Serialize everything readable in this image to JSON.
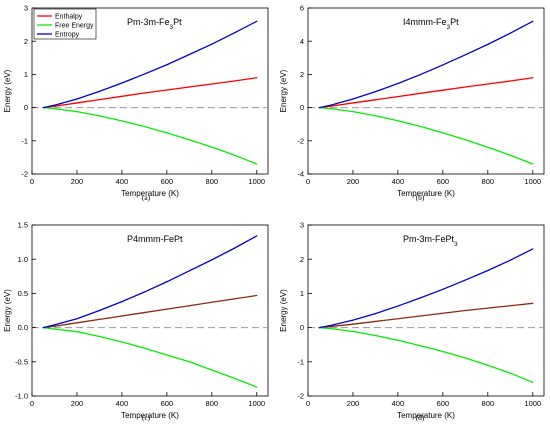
{
  "colors": {
    "enthalpy": "#ff0000",
    "free_energy": "#00ee00",
    "entropy": "#0000cc",
    "zero_line": "#999999"
  },
  "chart_data": [
    {
      "type": "line",
      "title": "Pm-3m-Fe3Pt",
      "title_base": "Pm-3m-Fe",
      "title_sub": "3",
      "title_tail": "Pt",
      "xlabel": "Temperature (K)",
      "ylabel": "Energy (eV)",
      "caption": "(a)",
      "xlim": [
        0,
        1050
      ],
      "ylim": [
        -2,
        3
      ],
      "xticks": [
        0,
        200,
        400,
        600,
        800,
        1000
      ],
      "xtick_labels": [
        "0",
        "200",
        "400",
        "600",
        "800",
        "1000"
      ],
      "yticks": [
        -2,
        -1,
        0,
        1,
        2,
        3
      ],
      "ytick_labels": [
        "-2",
        "-1",
        "0",
        "1",
        "2",
        "3"
      ],
      "legend": {
        "placement": "top-left",
        "entries": [
          "Enthalpy",
          "Free Energy",
          "Entropy"
        ]
      },
      "x": [
        50,
        100,
        200,
        300,
        400,
        500,
        600,
        700,
        800,
        900,
        1000
      ],
      "series": [
        {
          "name": "Enthalpy",
          "color": "#ff0000",
          "values": [
            0.0,
            0.04,
            0.14,
            0.24,
            0.34,
            0.44,
            0.53,
            0.62,
            0.71,
            0.8,
            0.9
          ]
        },
        {
          "name": "Free Energy",
          "color": "#00ee00",
          "values": [
            0.0,
            -0.03,
            -0.12,
            -0.25,
            -0.4,
            -0.57,
            -0.76,
            -0.97,
            -1.19,
            -1.43,
            -1.7
          ]
        },
        {
          "name": "Entropy",
          "color": "#0000cc",
          "values": [
            0.0,
            0.07,
            0.26,
            0.49,
            0.74,
            1.01,
            1.29,
            1.6,
            1.91,
            2.25,
            2.6
          ]
        }
      ]
    },
    {
      "type": "line",
      "title": "I4mmm-Fe3Pt",
      "title_base": "I4mmm-Fe",
      "title_sub": "3",
      "title_tail": "Pt",
      "xlabel": "Temperature (K)",
      "ylabel": "Energy (eV)",
      "caption": "(b)",
      "xlim": [
        0,
        1050
      ],
      "ylim": [
        -4,
        6
      ],
      "xticks": [
        0,
        200,
        400,
        600,
        800,
        1000
      ],
      "xtick_labels": [
        "0",
        "200",
        "400",
        "600",
        "800",
        "1000"
      ],
      "yticks": [
        -4,
        -2,
        0,
        2,
        4,
        6
      ],
      "ytick_labels": [
        "-4",
        "-2",
        "0",
        "2",
        "4",
        "6"
      ],
      "x": [
        50,
        100,
        200,
        300,
        400,
        500,
        600,
        700,
        800,
        900,
        1000
      ],
      "series": [
        {
          "color": "#ff0000",
          "values": [
            0.0,
            0.08,
            0.28,
            0.47,
            0.66,
            0.86,
            1.05,
            1.24,
            1.42,
            1.6,
            1.8
          ]
        },
        {
          "color": "#00ee00",
          "values": [
            0.0,
            -0.06,
            -0.24,
            -0.49,
            -0.79,
            -1.13,
            -1.52,
            -1.94,
            -2.39,
            -2.87,
            -3.4
          ]
        },
        {
          "color": "#0000cc",
          "values": [
            0.0,
            0.14,
            0.52,
            0.96,
            1.45,
            1.99,
            2.57,
            3.18,
            3.81,
            4.48,
            5.2
          ]
        }
      ]
    },
    {
      "type": "line",
      "title": "P4mmm-FePt",
      "title_base": "P4mmm-FePt",
      "title_sub": "",
      "title_tail": "",
      "xlabel": "Temperature (K)",
      "ylabel": "Energy (eV)",
      "caption": "(c)",
      "xlim": [
        0,
        1050
      ],
      "ylim": [
        -1.0,
        1.5
      ],
      "xticks": [
        0,
        200,
        400,
        600,
        800,
        1000
      ],
      "xtick_labels": [
        "0",
        "200",
        "400",
        "600",
        "800",
        "1000"
      ],
      "yticks": [
        -1.0,
        -0.5,
        0.0,
        0.5,
        1.0,
        1.5
      ],
      "ytick_labels": [
        "-1.0",
        "-0.5",
        "0.0",
        "0.5",
        "1.0",
        "1.5"
      ],
      "x": [
        50,
        100,
        200,
        300,
        400,
        500,
        600,
        700,
        800,
        900,
        1000
      ],
      "series": [
        {
          "color": "#8b2a10",
          "values": [
            0.0,
            0.02,
            0.07,
            0.12,
            0.17,
            0.22,
            0.27,
            0.32,
            0.37,
            0.42,
            0.47
          ]
        },
        {
          "color": "#00ee00",
          "values": [
            0.0,
            -0.02,
            -0.06,
            -0.13,
            -0.21,
            -0.3,
            -0.4,
            -0.5,
            -0.62,
            -0.74,
            -0.87
          ]
        },
        {
          "color": "#0000cc",
          "values": [
            0.0,
            0.04,
            0.13,
            0.25,
            0.38,
            0.52,
            0.67,
            0.83,
            0.99,
            1.16,
            1.34
          ]
        }
      ]
    },
    {
      "type": "line",
      "title": "Pm-3m-FePt3",
      "title_base": "Pm-3m-FePt",
      "title_sub": "3",
      "title_tail": "",
      "xlabel": "Temperature (K)",
      "ylabel": "Energy (eV)",
      "caption": "(d)",
      "xlim": [
        0,
        1050
      ],
      "ylim": [
        -2,
        3
      ],
      "xticks": [
        0,
        200,
        400,
        600,
        800,
        1000
      ],
      "xtick_labels": [
        "0",
        "200",
        "400",
        "600",
        "800",
        "1000"
      ],
      "yticks": [
        -2,
        -1,
        0,
        1,
        2,
        3
      ],
      "ytick_labels": [
        "-2",
        "-1",
        "0",
        "1",
        "2",
        "3"
      ],
      "x": [
        50,
        100,
        200,
        300,
        400,
        500,
        600,
        700,
        800,
        900,
        1000
      ],
      "series": [
        {
          "color": "#8b2a10",
          "values": [
            0.0,
            0.03,
            0.1,
            0.18,
            0.26,
            0.34,
            0.42,
            0.5,
            0.57,
            0.64,
            0.71
          ]
        },
        {
          "color": "#00ee00",
          "values": [
            0.0,
            -0.03,
            -0.11,
            -0.23,
            -0.37,
            -0.53,
            -0.7,
            -0.89,
            -1.1,
            -1.33,
            -1.6
          ]
        },
        {
          "color": "#0000cc",
          "values": [
            0.0,
            0.06,
            0.22,
            0.41,
            0.63,
            0.87,
            1.12,
            1.39,
            1.67,
            1.97,
            2.3
          ]
        }
      ]
    }
  ]
}
